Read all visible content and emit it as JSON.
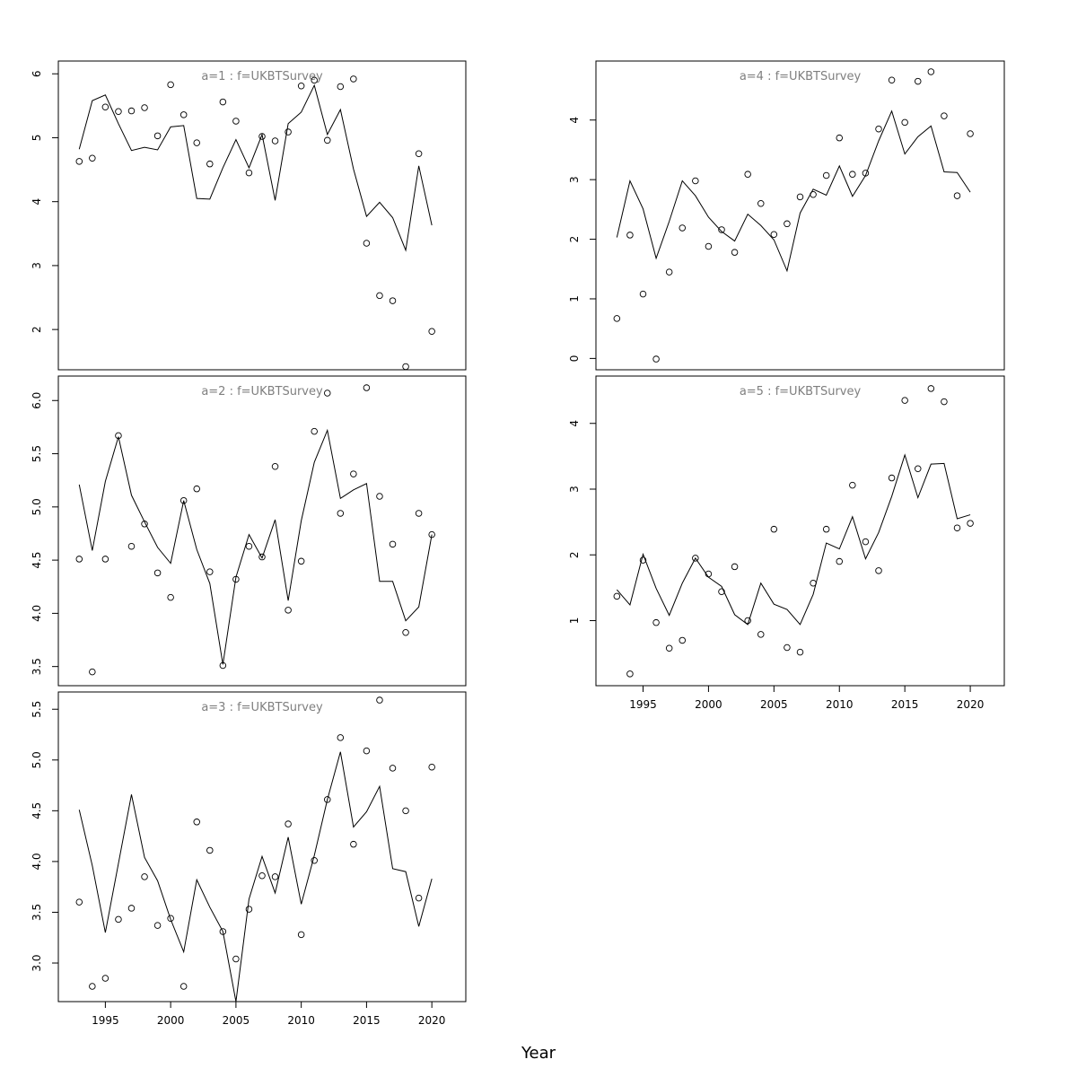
{
  "xlabel": "Year",
  "chart_data": [
    {
      "type": "scatter+line",
      "title": "a=1 : f=UKBTSurvey",
      "x": [
        1993,
        1994,
        1995,
        1996,
        1997,
        1998,
        1999,
        2000,
        2001,
        2002,
        2003,
        2004,
        2005,
        2006,
        2007,
        2008,
        2009,
        2010,
        2011,
        2012,
        2013,
        2014,
        2015,
        2016,
        2017,
        2018,
        2019,
        2020
      ],
      "xlim": [
        1991.4,
        2022.6
      ],
      "ylim": [
        1.37,
        6.2
      ],
      "yticks": [
        2,
        3,
        4,
        5,
        6
      ],
      "xticks": [],
      "series": [
        {
          "kind": "observed",
          "values": [
            4.63,
            4.68,
            5.48,
            5.41,
            5.42,
            5.47,
            5.03,
            5.83,
            5.36,
            4.92,
            4.59,
            5.56,
            5.26,
            4.45,
            5.02,
            4.95,
            5.09,
            5.81,
            5.9,
            4.96,
            5.8,
            5.92,
            3.35,
            2.53,
            2.45,
            1.42,
            4.75,
            1.97
          ]
        },
        {
          "kind": "fitted",
          "values": [
            4.82,
            5.58,
            5.67,
            5.22,
            4.8,
            4.85,
            4.81,
            5.17,
            5.19,
            4.05,
            4.04,
            4.53,
            4.97,
            4.53,
            5.05,
            4.02,
            5.22,
            5.4,
            5.82,
            5.05,
            5.44,
            4.51,
            3.77,
            3.99,
            3.75,
            3.24,
            4.56,
            3.63
          ]
        }
      ]
    },
    {
      "type": "scatter+line",
      "title": "a=2 : f=UKBTSurvey",
      "x": [
        1993,
        1994,
        1995,
        1996,
        1997,
        1998,
        1999,
        2000,
        2001,
        2002,
        2003,
        2004,
        2005,
        2006,
        2007,
        2008,
        2009,
        2010,
        2011,
        2012,
        2013,
        2014,
        2015,
        2016,
        2017,
        2018,
        2019,
        2020
      ],
      "xlim": [
        1991.4,
        2022.6
      ],
      "ylim": [
        3.32,
        6.23
      ],
      "yticks": [
        3.5,
        4.0,
        4.5,
        5.0,
        5.5,
        6.0
      ],
      "xticks": [],
      "series": [
        {
          "kind": "observed",
          "values": [
            4.51,
            3.45,
            4.51,
            5.67,
            4.63,
            4.84,
            4.38,
            4.15,
            5.06,
            5.17,
            4.39,
            3.51,
            4.32,
            4.63,
            4.53,
            5.38,
            4.03,
            4.49,
            5.71,
            6.07,
            4.94,
            5.31,
            6.12,
            5.1,
            4.65,
            3.82,
            4.94,
            4.74
          ]
        },
        {
          "kind": "fitted",
          "values": [
            5.21,
            4.59,
            5.24,
            5.66,
            5.11,
            4.86,
            4.62,
            4.47,
            5.06,
            4.6,
            4.28,
            3.52,
            4.34,
            4.74,
            4.52,
            4.88,
            4.12,
            4.87,
            5.42,
            5.72,
            5.08,
            5.16,
            5.22,
            4.3,
            4.3,
            3.93,
            4.06,
            4.74
          ]
        }
      ]
    },
    {
      "type": "scatter+line",
      "title": "a=3 : f=UKBTSurvey",
      "x": [
        1993,
        1994,
        1995,
        1996,
        1997,
        1998,
        1999,
        2000,
        2001,
        2002,
        2003,
        2004,
        2005,
        2006,
        2007,
        2008,
        2009,
        2010,
        2011,
        2012,
        2013,
        2014,
        2015,
        2016,
        2017,
        2018,
        2019,
        2020
      ],
      "xlim": [
        1991.4,
        2022.6
      ],
      "ylim": [
        2.62,
        5.67
      ],
      "yticks": [
        3.0,
        3.5,
        4.0,
        4.5,
        5.0,
        5.5
      ],
      "xticks": [
        1995,
        2000,
        2005,
        2010,
        2015,
        2020
      ],
      "series": [
        {
          "kind": "observed",
          "values": [
            3.6,
            2.77,
            2.85,
            3.43,
            3.54,
            3.85,
            3.37,
            3.44,
            2.77,
            4.39,
            4.11,
            3.31,
            3.04,
            3.53,
            3.86,
            3.85,
            4.37,
            3.28,
            4.01,
            4.61,
            5.22,
            4.17,
            5.09,
            5.59,
            4.92,
            4.5,
            3.64,
            4.93
          ]
        },
        {
          "kind": "fitted",
          "values": [
            4.51,
            3.96,
            3.3,
            3.98,
            4.66,
            4.04,
            3.81,
            3.43,
            3.11,
            3.82,
            3.55,
            3.31,
            2.62,
            3.63,
            4.05,
            3.69,
            4.24,
            3.58,
            4.06,
            4.61,
            5.08,
            4.34,
            4.49,
            4.74,
            3.93,
            3.9,
            3.36,
            3.83
          ]
        }
      ]
    },
    {
      "type": "scatter+line",
      "title": "a=4 : f=UKBTSurvey",
      "x": [
        1993,
        1994,
        1995,
        1996,
        1997,
        1998,
        1999,
        2000,
        2001,
        2002,
        2003,
        2004,
        2005,
        2006,
        2007,
        2008,
        2009,
        2010,
        2011,
        2012,
        2013,
        2014,
        2015,
        2016,
        2017,
        2018,
        2019,
        2020
      ],
      "xlim": [
        1991.4,
        2022.6
      ],
      "ylim": [
        -0.19,
        4.99
      ],
      "yticks": [
        0,
        1,
        2,
        3,
        4
      ],
      "xticks": [],
      "series": [
        {
          "kind": "observed",
          "values": [
            0.67,
            2.07,
            1.08,
            -0.01,
            1.45,
            2.19,
            2.98,
            1.88,
            2.16,
            1.78,
            3.09,
            2.6,
            2.08,
            2.26,
            2.71,
            2.75,
            3.07,
            3.7,
            3.09,
            3.11,
            3.85,
            4.67,
            3.96,
            4.65,
            4.81,
            4.07,
            2.73,
            3.77
          ]
        },
        {
          "kind": "fitted",
          "values": [
            2.03,
            2.98,
            2.51,
            1.68,
            2.3,
            2.98,
            2.73,
            2.37,
            2.13,
            1.97,
            2.42,
            2.23,
            1.99,
            1.47,
            2.44,
            2.84,
            2.74,
            3.23,
            2.72,
            3.07,
            3.65,
            4.15,
            3.43,
            3.72,
            3.9,
            3.13,
            3.12,
            2.79
          ]
        }
      ]
    },
    {
      "type": "scatter+line",
      "title": "a=5 : f=UKBTSurvey",
      "x": [
        1993,
        1994,
        1995,
        1996,
        1997,
        1998,
        1999,
        2000,
        2001,
        2002,
        2003,
        2004,
        2005,
        2006,
        2007,
        2008,
        2009,
        2010,
        2011,
        2012,
        2013,
        2014,
        2015,
        2016,
        2017,
        2018,
        2019,
        2020
      ],
      "xlim": [
        1991.4,
        2022.6
      ],
      "ylim": [
        0.01,
        4.72
      ],
      "yticks": [
        1,
        2,
        3,
        4
      ],
      "xticks": [
        1995,
        2000,
        2005,
        2010,
        2015,
        2020
      ],
      "series": [
        {
          "kind": "observed",
          "values": [
            1.37,
            0.19,
            1.92,
            0.97,
            0.58,
            0.7,
            1.95,
            1.71,
            1.44,
            1.82,
            1.0,
            0.79,
            2.39,
            0.59,
            0.52,
            1.57,
            2.39,
            1.9,
            3.06,
            2.2,
            1.76,
            3.17,
            4.35,
            3.31,
            4.53,
            4.33,
            2.41,
            2.48
          ]
        },
        {
          "kind": "fitted",
          "values": [
            1.47,
            1.24,
            2.01,
            1.49,
            1.08,
            1.57,
            1.95,
            1.66,
            1.52,
            1.09,
            0.94,
            1.57,
            1.25,
            1.17,
            0.94,
            1.4,
            2.18,
            2.09,
            2.58,
            1.94,
            2.34,
            2.89,
            3.52,
            2.87,
            3.38,
            3.39,
            2.55,
            2.61
          ]
        }
      ]
    }
  ]
}
